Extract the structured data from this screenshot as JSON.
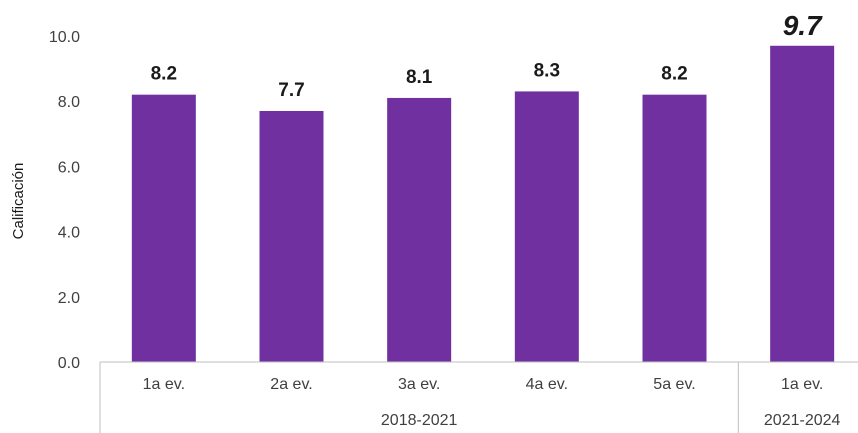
{
  "chart_data": {
    "type": "bar",
    "title": "",
    "ylabel": "Calificación",
    "ylim": [
      0,
      10
    ],
    "yticks": [
      "0.0",
      "2.0",
      "4.0",
      "6.0",
      "8.0",
      "10.0"
    ],
    "categories": [
      "1a ev.",
      "2a ev.",
      "3a ev.",
      "4a ev.",
      "5a ev.",
      "1a ev."
    ],
    "values": [
      8.2,
      7.7,
      8.1,
      8.3,
      8.2,
      9.7
    ],
    "data_labels": [
      "8.2",
      "7.7",
      "8.1",
      "8.3",
      "8.2",
      "9.7"
    ],
    "highlight_index": 5,
    "groups": [
      {
        "label": "2018-2021",
        "count": 5
      },
      {
        "label": "2021-2024",
        "count": 1
      }
    ],
    "bar_color": "#7030a0",
    "grid": false,
    "legend": "none"
  }
}
